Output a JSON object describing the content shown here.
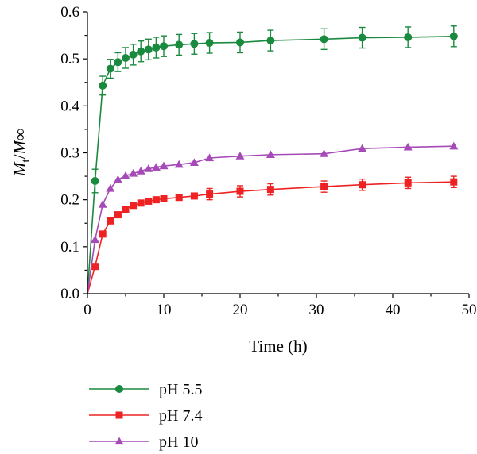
{
  "chart_data": {
    "type": "line",
    "xlabel": "Time (h)",
    "ylabel": {
      "M": "M",
      "t": "t",
      "slash": "/",
      "inf": "M∞"
    },
    "xlim": [
      0,
      50
    ],
    "ylim": [
      0,
      0.6
    ],
    "xticks": [
      "0",
      "10",
      "20",
      "30",
      "40",
      "50"
    ],
    "yticks": [
      "0.0",
      "0.1",
      "0.2",
      "0.3",
      "0.4",
      "0.5",
      "0.6"
    ],
    "grid": false,
    "legend_position": "bottom-left",
    "series": [
      {
        "name": "pH 5.5",
        "color": "#1a8a3e",
        "marker": "circle",
        "x": [
          0,
          1,
          2,
          3,
          4,
          5,
          6,
          7,
          8,
          9,
          10,
          12,
          14,
          16,
          20,
          24,
          31,
          36,
          42,
          48
        ],
        "y": [
          0,
          0.24,
          0.443,
          0.479,
          0.493,
          0.502,
          0.509,
          0.516,
          0.52,
          0.524,
          0.527,
          0.53,
          0.532,
          0.534,
          0.535,
          0.539,
          0.542,
          0.545,
          0.546,
          0.548
        ],
        "err": [
          0,
          0.025,
          0.02,
          0.02,
          0.02,
          0.022,
          0.022,
          0.022,
          0.022,
          0.022,
          0.022,
          0.022,
          0.022,
          0.022,
          0.022,
          0.022,
          0.022,
          0.022,
          0.022,
          0.022
        ]
      },
      {
        "name": "pH 7.4",
        "color": "#ee2222",
        "marker": "square",
        "x": [
          0,
          1,
          2,
          3,
          4,
          5,
          6,
          7,
          8,
          9,
          10,
          12,
          14,
          16,
          20,
          24,
          31,
          36,
          42,
          48
        ],
        "y": [
          0,
          0.058,
          0.127,
          0.155,
          0.168,
          0.18,
          0.188,
          0.193,
          0.197,
          0.2,
          0.202,
          0.205,
          0.208,
          0.212,
          0.218,
          0.222,
          0.228,
          0.232,
          0.236,
          0.238
        ],
        "err": [
          0,
          0,
          0,
          0,
          0,
          0,
          0,
          0,
          0,
          0,
          0,
          0,
          0,
          0.012,
          0.012,
          0.012,
          0.012,
          0.012,
          0.012,
          0.012
        ]
      },
      {
        "name": "pH 10",
        "color": "#a64ab8",
        "marker": "triangle",
        "x": [
          0,
          1,
          2,
          3,
          4,
          5,
          6,
          7,
          8,
          9,
          10,
          12,
          14,
          16,
          20,
          24,
          31,
          36,
          42,
          48
        ],
        "y": [
          0,
          0.115,
          0.19,
          0.224,
          0.243,
          0.251,
          0.256,
          0.261,
          0.266,
          0.269,
          0.272,
          0.275,
          0.279,
          0.289,
          0.293,
          0.296,
          0.298,
          0.309,
          0.312,
          0.314
        ],
        "err": [
          0,
          0,
          0,
          0,
          0,
          0,
          0,
          0,
          0,
          0,
          0,
          0,
          0,
          0,
          0,
          0,
          0,
          0,
          0,
          0
        ]
      }
    ]
  }
}
